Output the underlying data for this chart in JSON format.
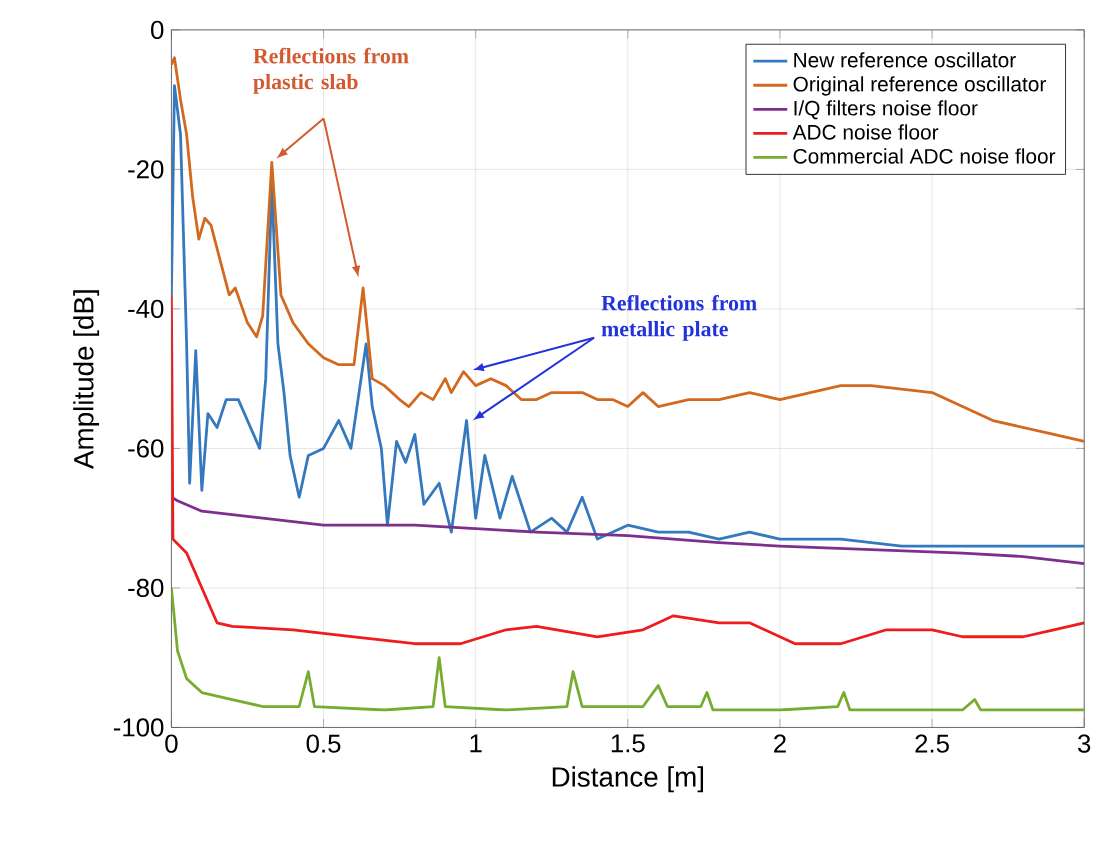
{
  "chart_data": {
    "type": "line",
    "xlabel": "Distance [m]",
    "ylabel": "Amplitude [dB]",
    "xlim": [
      0,
      3
    ],
    "ylim": [
      -100,
      0
    ],
    "xticks": [
      0,
      0.5,
      1,
      1.5,
      2,
      2.5,
      3
    ],
    "yticks": [
      -100,
      -80,
      -60,
      -40,
      -20,
      0
    ],
    "grid": true,
    "legend": "top right",
    "line_style": "solid",
    "marker": "none",
    "annotations": [
      {
        "text": "Reflections from plastic slab",
        "x": 0.33,
        "y": -19
      },
      {
        "text": "Reflections from metallic plate",
        "x": 0.97,
        "y": -49
      }
    ],
    "series": [
      {
        "name": "New reference oscillator",
        "color": "#3478bd",
        "x": [
          0,
          0.01,
          0.03,
          0.05,
          0.06,
          0.08,
          0.1,
          0.12,
          0.15,
          0.18,
          0.22,
          0.26,
          0.29,
          0.31,
          0.33,
          0.35,
          0.37,
          0.39,
          0.42,
          0.45,
          0.5,
          0.55,
          0.59,
          0.62,
          0.64,
          0.66,
          0.69,
          0.71,
          0.74,
          0.77,
          0.8,
          0.83,
          0.88,
          0.92,
          0.97,
          1.0,
          1.03,
          1.08,
          1.12,
          1.18,
          1.25,
          1.3,
          1.35,
          1.4,
          1.5,
          1.6,
          1.7,
          1.8,
          1.9,
          2.0,
          2.2,
          2.4,
          2.6,
          2.8,
          3.0
        ],
        "values": [
          -38,
          -8,
          -15,
          -45,
          -65,
          -46,
          -66,
          -55,
          -57,
          -53,
          -53,
          -57,
          -60,
          -50,
          -22,
          -45,
          -52,
          -61,
          -67,
          -61,
          -60,
          -56,
          -60,
          -51,
          -45,
          -54,
          -60,
          -71,
          -59,
          -62,
          -58,
          -68,
          -65,
          -72,
          -56,
          -70,
          -61,
          -70,
          -64,
          -72,
          -70,
          -72,
          -67,
          -73,
          -71,
          -72,
          -72,
          -73,
          -72,
          -73,
          -73,
          -74,
          -74,
          -74,
          -74
        ]
      },
      {
        "name": "Original reference oscillator",
        "color": "#d2691e",
        "x": [
          0,
          0.01,
          0.03,
          0.05,
          0.07,
          0.09,
          0.11,
          0.13,
          0.16,
          0.19,
          0.21,
          0.25,
          0.28,
          0.3,
          0.33,
          0.36,
          0.4,
          0.45,
          0.5,
          0.55,
          0.6,
          0.63,
          0.66,
          0.7,
          0.75,
          0.78,
          0.82,
          0.86,
          0.9,
          0.92,
          0.96,
          1.0,
          1.05,
          1.1,
          1.15,
          1.2,
          1.25,
          1.3,
          1.35,
          1.4,
          1.45,
          1.5,
          1.55,
          1.6,
          1.7,
          1.8,
          1.9,
          2.0,
          2.1,
          2.2,
          2.3,
          2.4,
          2.5,
          2.6,
          2.7,
          2.8,
          2.9,
          3.0
        ],
        "values": [
          -5,
          -4,
          -10,
          -15,
          -24,
          -30,
          -27,
          -28,
          -33,
          -38,
          -37,
          -42,
          -44,
          -41,
          -19,
          -38,
          -42,
          -45,
          -47,
          -48,
          -48,
          -37,
          -50,
          -51,
          -53,
          -54,
          -52,
          -53,
          -50,
          -52,
          -49,
          -51,
          -50,
          -51,
          -53,
          -53,
          -52,
          -52,
          -52,
          -53,
          -53,
          -54,
          -52,
          -54,
          -53,
          -53,
          -52,
          -53,
          -52,
          -51,
          -51,
          -51.5,
          -52,
          -54,
          -56,
          -57,
          -58,
          -59
        ]
      },
      {
        "name": "I/Q filters noise floor",
        "color": "#7e2f8e",
        "x": [
          0,
          0.02,
          0.1,
          0.3,
          0.5,
          0.8,
          1.0,
          1.2,
          1.5,
          1.8,
          2.0,
          2.3,
          2.6,
          2.8,
          3.0
        ],
        "values": [
          -67,
          -67.5,
          -69,
          -70,
          -71,
          -71,
          -71.5,
          -72,
          -72.5,
          -73.5,
          -74,
          -74.5,
          -75,
          -75.5,
          -76.5
        ]
      },
      {
        "name": "ADC noise floor",
        "color": "#ee1c1c",
        "x": [
          0,
          0.005,
          0.05,
          0.1,
          0.15,
          0.2,
          0.4,
          0.6,
          0.8,
          0.95,
          1.1,
          1.2,
          1.4,
          1.55,
          1.65,
          1.8,
          1.9,
          2.05,
          2.2,
          2.35,
          2.5,
          2.6,
          2.8,
          2.9,
          3.0
        ],
        "values": [
          -38,
          -73,
          -75,
          -80,
          -85,
          -85.5,
          -86,
          -87,
          -88,
          -88,
          -86,
          -85.5,
          -87,
          -86,
          -84,
          -85,
          -85,
          -88,
          -88,
          -86,
          -86,
          -87,
          -87,
          -86,
          -85
        ]
      },
      {
        "name": "Commercial ADC noise floor",
        "color": "#77ac30",
        "x": [
          0,
          0.02,
          0.05,
          0.1,
          0.2,
          0.3,
          0.42,
          0.45,
          0.47,
          0.7,
          0.86,
          0.88,
          0.9,
          1.1,
          1.3,
          1.32,
          1.35,
          1.55,
          1.6,
          1.63,
          1.74,
          1.76,
          1.78,
          2.0,
          2.19,
          2.21,
          2.23,
          2.6,
          2.64,
          2.66,
          3.0
        ],
        "values": [
          -80,
          -89,
          -93,
          -95,
          -96,
          -97,
          -97,
          -92,
          -97,
          -97.5,
          -97,
          -90,
          -97,
          -97.5,
          -97,
          -92,
          -97,
          -97,
          -94,
          -97,
          -97,
          -95,
          -97.5,
          -97.5,
          -97,
          -95,
          -97.5,
          -97.5,
          -96,
          -97.5,
          -97.5
        ]
      }
    ]
  }
}
